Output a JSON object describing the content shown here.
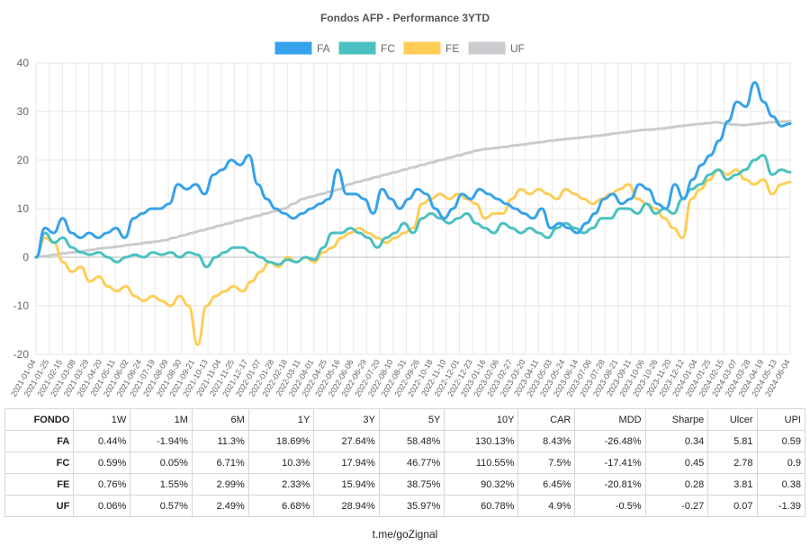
{
  "chart_data": {
    "type": "line",
    "title": "Fondos AFP - Performance 3YTD",
    "ylim": [
      -20,
      40
    ],
    "yticks": [
      -20,
      -10,
      0,
      10,
      20,
      30,
      40
    ],
    "grid": true,
    "legend_position": "top-center",
    "x_tick_labels": [
      "2021-01-04",
      "2021-01-25",
      "2021-02-15",
      "2021-03-08",
      "2021-03-29",
      "2021-04-20",
      "2021-05-11",
      "2021-06-02",
      "2021-06-24",
      "2021-07-19",
      "2021-08-09",
      "2021-08-30",
      "2021-09-21",
      "2021-10-13",
      "2021-11-04",
      "2021-11-25",
      "2021-12-17",
      "2022-01-07",
      "2022-01-28",
      "2022-02-18",
      "2022-03-11",
      "2022-04-01",
      "2022-04-25",
      "2022-05-16",
      "2022-06-06",
      "2022-06-29",
      "2022-07-20",
      "2022-08-10",
      "2022-08-31",
      "2022-09-26",
      "2022-10-18",
      "2022-11-10",
      "2022-12-01",
      "2022-12-23",
      "2023-01-16",
      "2023-02-06",
      "2023-02-27",
      "2023-03-20",
      "2023-04-11",
      "2023-05-03",
      "2023-05-24",
      "2023-06-14",
      "2023-07-06",
      "2023-07-28",
      "2023-08-21",
      "2023-09-11",
      "2023-10-06",
      "2023-10-26",
      "2023-11-20",
      "2023-12-12",
      "2024-01-04",
      "2024-01-25",
      "2024-02-15",
      "2024-03-07",
      "2024-03-28",
      "2024-04-19",
      "2024-05-13",
      "2024-06-04"
    ],
    "series": [
      {
        "name": "FA",
        "color": "#36a2eb",
        "values": [
          0,
          6,
          5,
          8,
          5,
          4,
          5,
          4,
          5,
          6,
          4,
          8,
          9,
          10,
          10,
          11,
          15,
          14,
          15,
          13,
          17,
          18,
          20,
          19,
          21,
          15,
          12,
          10,
          9,
          8,
          9,
          10,
          11,
          12,
          18,
          13,
          13,
          12,
          9,
          14,
          12,
          10,
          12,
          14,
          13,
          10,
          8,
          10,
          13,
          12,
          14,
          13,
          12,
          11,
          10,
          9,
          8,
          10,
          6,
          7,
          6,
          5,
          7,
          9,
          12,
          13,
          11,
          12,
          15,
          14,
          11,
          10,
          15,
          12,
          16,
          19,
          21,
          24,
          28,
          32,
          31,
          36,
          32,
          29,
          27,
          27.5
        ]
      },
      {
        "name": "FC",
        "color": "#4bc0c0",
        "values": [
          0,
          5,
          3,
          4,
          2,
          1,
          0.5,
          1,
          0,
          -1,
          0,
          0.5,
          0,
          1,
          0.5,
          1,
          0,
          1,
          0.5,
          -2,
          0,
          1,
          2,
          2,
          1,
          0,
          -1,
          -1.5,
          -0.5,
          -1,
          0,
          -0.5,
          2,
          5,
          5,
          6,
          5,
          4,
          2,
          4,
          5,
          7,
          5,
          8,
          9,
          8,
          7,
          8,
          9,
          7,
          6,
          5,
          7,
          6,
          5,
          6,
          5,
          4,
          6,
          7,
          6,
          5,
          6,
          8,
          8,
          10,
          10,
          9,
          11,
          9,
          10,
          9,
          12,
          14,
          15,
          17,
          18,
          16,
          17,
          18,
          20,
          21,
          17,
          18,
          17.5
        ]
      },
      {
        "name": "FE",
        "color": "#ffcd56",
        "values": [
          0,
          4,
          3,
          -1,
          -3,
          -2,
          -5,
          -4,
          -6,
          -7,
          -6,
          -8,
          -9,
          -8,
          -9,
          -10,
          -8,
          -10,
          -18,
          -10,
          -8,
          -7,
          -6,
          -7,
          -5,
          -3,
          -1,
          -2,
          0,
          -1,
          0,
          -1,
          1,
          2,
          4,
          5,
          6,
          5,
          4,
          3,
          4,
          5,
          6,
          11,
          12,
          13,
          12,
          13,
          12,
          11,
          8,
          9,
          9,
          12,
          14,
          13,
          14,
          13,
          12,
          14,
          13,
          12,
          11,
          12,
          13,
          14,
          15,
          12,
          11,
          10,
          8,
          6,
          4,
          12,
          14,
          16,
          18,
          17,
          18,
          16,
          15,
          16,
          13,
          15,
          15.5
        ]
      },
      {
        "name": "UF",
        "color": "#c9cbcf",
        "values": [
          0,
          0.2,
          0.5,
          0.8,
          1,
          1.2,
          1.5,
          1.8,
          2,
          2.2,
          2.5,
          2.7,
          3,
          3.2,
          3.5,
          4,
          4.5,
          5,
          5.5,
          6,
          6.5,
          7,
          7.5,
          8,
          8.5,
          9,
          9.5,
          10,
          11,
          12,
          12.5,
          13,
          13.5,
          14,
          15,
          15.5,
          16,
          16.5,
          17,
          17.5,
          18,
          18.5,
          19,
          19.5,
          20,
          20.5,
          21,
          21.5,
          22,
          22.3,
          22.5,
          22.7,
          23,
          23.2,
          23.5,
          23.7,
          24,
          24.2,
          24.4,
          24.6,
          24.8,
          25,
          25.2,
          25.5,
          25.7,
          26,
          26.2,
          26.3,
          26.5,
          26.7,
          27,
          27.2,
          27.4,
          27.6,
          27.8,
          27.5,
          27.3,
          27.2,
          27.4,
          27.6,
          27.8,
          27.9,
          28
        ]
      }
    ]
  },
  "table": {
    "headers": [
      "FONDO",
      "1W",
      "1M",
      "6M",
      "1Y",
      "3Y",
      "5Y",
      "10Y",
      "CAR",
      "MDD",
      "Sharpe",
      "Ulcer",
      "UPI"
    ],
    "rows": [
      [
        "FA",
        "0.44%",
        "-1.94%",
        "11.3%",
        "18.69%",
        "27.64%",
        "58.48%",
        "130.13%",
        "8.43%",
        "-26.48%",
        "0.34",
        "5.81",
        "0.59"
      ],
      [
        "FC",
        "0.59%",
        "0.05%",
        "6.71%",
        "10.3%",
        "17.94%",
        "46.77%",
        "110.55%",
        "7.5%",
        "-17.41%",
        "0.45",
        "2.78",
        "0.9"
      ],
      [
        "FE",
        "0.76%",
        "1.55%",
        "2.99%",
        "2.33%",
        "15.94%",
        "38.75%",
        "90.32%",
        "6.45%",
        "-20.81%",
        "0.28",
        "3.81",
        "0.38"
      ],
      [
        "UF",
        "0.06%",
        "0.57%",
        "2.49%",
        "6.68%",
        "28.94%",
        "35.97%",
        "60.78%",
        "4.9%",
        "-0.5%",
        "-0.27",
        "0.07",
        "-1.39"
      ]
    ]
  },
  "footer": {
    "text": "t.me/goZignal"
  }
}
